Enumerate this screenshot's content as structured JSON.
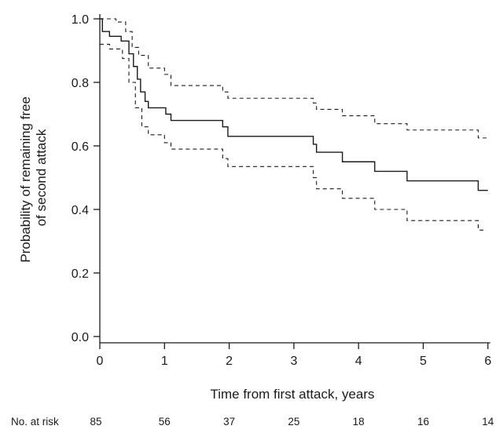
{
  "chart_data": {
    "type": "line",
    "title": "",
    "xlabel": "Time from first attack, years",
    "ylabel": "Probability of remaining free of second attack",
    "ylabel_lines": [
      "Probability of remaining free",
      "of second attack"
    ],
    "xlim": [
      0,
      6.1
    ],
    "ylim": [
      0,
      1.05
    ],
    "x_ticks": [
      0,
      1,
      2,
      3,
      4,
      5,
      6
    ],
    "x_tick_labels": [
      "0",
      "1",
      "2",
      "3",
      "4",
      "5",
      "6"
    ],
    "y_ticks": [
      0,
      0.2,
      0.4,
      0.6,
      0.8,
      1.0
    ],
    "y_tick_labels": [
      "0.0",
      "0.2",
      "0.4",
      "0.6",
      "0.8",
      "1.0"
    ],
    "grid": false,
    "legend": "none",
    "series": [
      {
        "style": "solid",
        "steps": [
          [
            0,
            1.0
          ],
          [
            0.04,
            0.96
          ],
          [
            0.15,
            0.945
          ],
          [
            0.33,
            0.93
          ],
          [
            0.45,
            0.89
          ],
          [
            0.52,
            0.85
          ],
          [
            0.58,
            0.81
          ],
          [
            0.63,
            0.77
          ],
          [
            0.7,
            0.74
          ],
          [
            0.75,
            0.72
          ],
          [
            1.02,
            0.7
          ],
          [
            1.1,
            0.68
          ],
          [
            1.9,
            0.66
          ],
          [
            1.98,
            0.63
          ],
          [
            3.3,
            0.605
          ],
          [
            3.35,
            0.58
          ],
          [
            3.75,
            0.55
          ],
          [
            4.25,
            0.52
          ],
          [
            4.75,
            0.49
          ],
          [
            5.85,
            0.46
          ],
          [
            6.0,
            0.46
          ]
        ]
      },
      {
        "style": "dashed",
        "steps": [
          [
            0,
            1.0
          ],
          [
            0.25,
            0.99
          ],
          [
            0.4,
            0.96
          ],
          [
            0.5,
            0.91
          ],
          [
            0.6,
            0.885
          ],
          [
            0.75,
            0.845
          ],
          [
            1.0,
            0.825
          ],
          [
            1.1,
            0.79
          ],
          [
            1.9,
            0.77
          ],
          [
            1.98,
            0.75
          ],
          [
            3.3,
            0.735
          ],
          [
            3.35,
            0.715
          ],
          [
            3.75,
            0.695
          ],
          [
            4.25,
            0.67
          ],
          [
            4.75,
            0.65
          ],
          [
            5.85,
            0.625
          ],
          [
            5.98,
            0.625
          ]
        ]
      },
      {
        "style": "dashed",
        "steps": [
          [
            0,
            0.92
          ],
          [
            0.15,
            0.905
          ],
          [
            0.35,
            0.875
          ],
          [
            0.45,
            0.8
          ],
          [
            0.55,
            0.72
          ],
          [
            0.65,
            0.66
          ],
          [
            0.75,
            0.635
          ],
          [
            1.0,
            0.61
          ],
          [
            1.1,
            0.59
          ],
          [
            1.9,
            0.56
          ],
          [
            1.98,
            0.535
          ],
          [
            3.3,
            0.5
          ],
          [
            3.35,
            0.465
          ],
          [
            3.75,
            0.435
          ],
          [
            4.25,
            0.4
          ],
          [
            4.75,
            0.365
          ],
          [
            5.85,
            0.335
          ],
          [
            5.98,
            0.335
          ]
        ]
      }
    ],
    "risk_table": {
      "label": "No. at risk",
      "values": [
        "85",
        "56",
        "37",
        "25",
        "18",
        "16",
        "14"
      ]
    }
  }
}
